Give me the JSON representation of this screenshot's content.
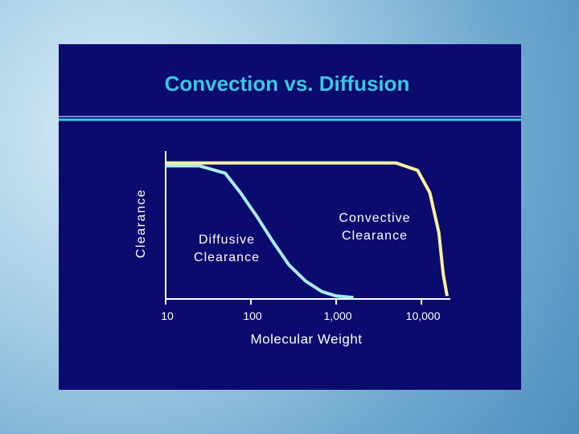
{
  "chart_data": {
    "type": "line",
    "title": "Convection vs. Diffusion",
    "xlabel": "Molecular Weight",
    "ylabel": "Clearance",
    "xscale": "log",
    "xlim": [
      10,
      20000
    ],
    "xticks": [
      10,
      100,
      {
        "value": 1000,
        "label": "1,000"
      },
      {
        "value": 10000,
        "label": "10,000"
      }
    ],
    "ylim": [
      0,
      1
    ],
    "series": [
      {
        "name": "Diffusive Clearance",
        "color": "#a8ecf4",
        "x": [
          10,
          25,
          50,
          75,
          120,
          180,
          280,
          440,
          680,
          1000,
          1600
        ],
        "values": [
          0.9,
          0.9,
          0.85,
          0.72,
          0.55,
          0.39,
          0.23,
          0.12,
          0.05,
          0.02,
          0.01
        ]
      },
      {
        "name": "Convective Clearance",
        "color": "#f8f0a0",
        "x": [
          10,
          5000,
          9000,
          12500,
          16000,
          18000,
          20000
        ],
        "values": [
          0.92,
          0.92,
          0.87,
          0.72,
          0.45,
          0.17,
          0.02
        ]
      }
    ]
  }
}
